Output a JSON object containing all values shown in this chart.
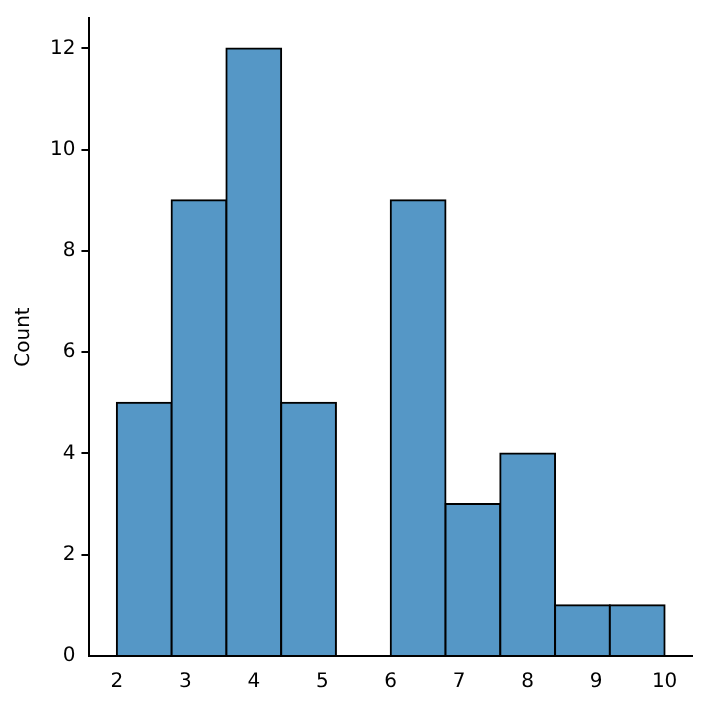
{
  "chart_data": {
    "type": "histogram",
    "ylabel": "Count",
    "bins": [
      2,
      2.8,
      3.6,
      4.4,
      5.2,
      6,
      6.8,
      7.6,
      8.4,
      9.2,
      10
    ],
    "values": [
      5,
      9,
      12,
      5,
      0,
      9,
      3,
      4,
      1,
      1
    ],
    "color": "#5597c6",
    "xlim": [
      1.6,
      10.4
    ],
    "xticks": [
      2,
      3,
      4,
      5,
      6,
      7,
      8,
      9,
      10
    ],
    "ylim": [
      0,
      12.6
    ],
    "yticks": [
      0,
      2,
      4,
      6,
      8,
      10,
      12
    ],
    "grid": false,
    "legend": false
  }
}
